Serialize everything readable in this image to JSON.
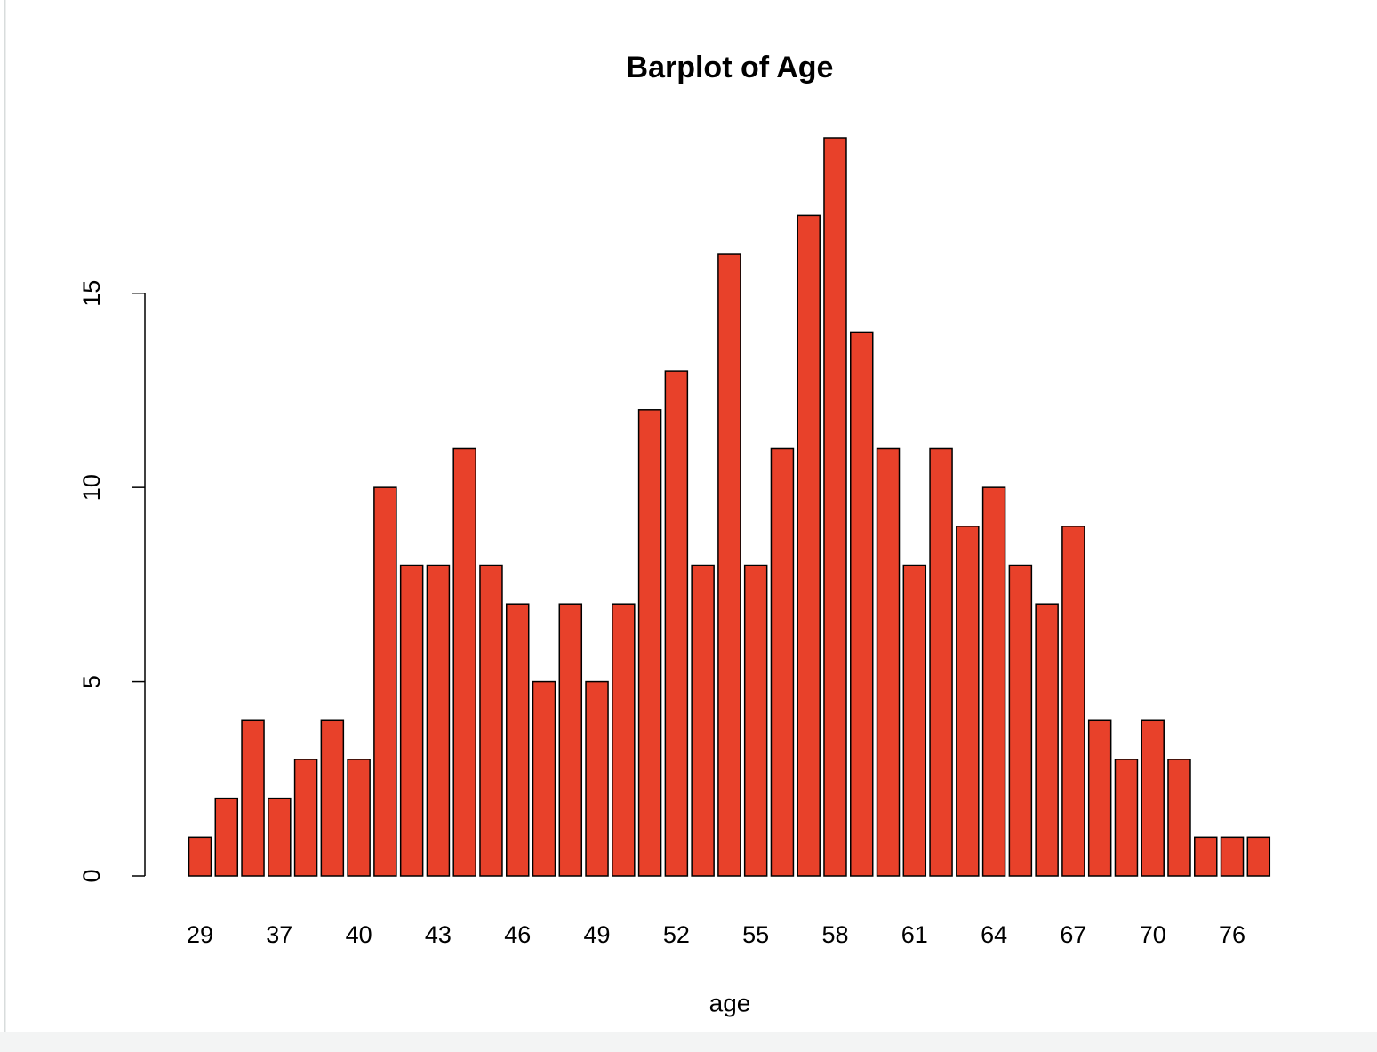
{
  "chart_data": {
    "type": "bar",
    "title": "Barplot of Age",
    "x_label": "age",
    "categories": [
      "29",
      null,
      null,
      "37",
      null,
      null,
      "40",
      null,
      null,
      "43",
      null,
      null,
      "46",
      null,
      null,
      "49",
      null,
      null,
      "52",
      null,
      null,
      "55",
      null,
      null,
      "58",
      null,
      null,
      "61",
      null,
      null,
      "64",
      null,
      null,
      "67",
      null,
      null,
      "70",
      null,
      null,
      "76",
      null
    ],
    "values": [
      1,
      2,
      4,
      2,
      3,
      4,
      3,
      10,
      8,
      8,
      11,
      8,
      7,
      5,
      7,
      5,
      7,
      12,
      13,
      8,
      16,
      8,
      11,
      17,
      19,
      14,
      11,
      8,
      11,
      9,
      10,
      8,
      7,
      9,
      4,
      3,
      4,
      3,
      1,
      1,
      1
    ],
    "color": "#e8412a",
    "ylim": [
      0,
      19
    ],
    "yticks": [
      0,
      5,
      10,
      15
    ],
    "grid": false
  }
}
